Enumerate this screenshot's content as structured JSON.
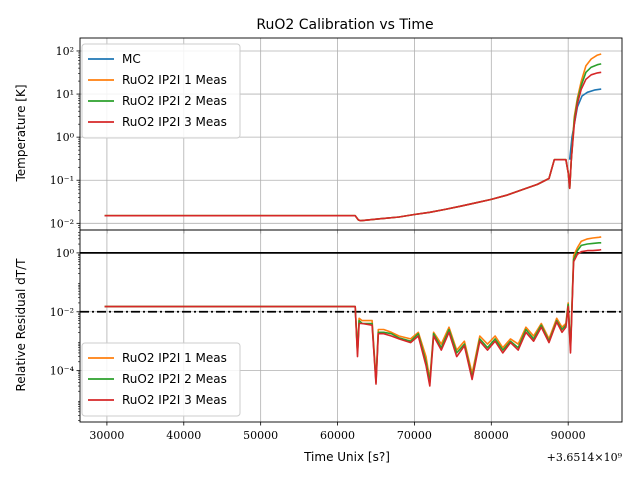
{
  "chart_data": {
    "type": "line",
    "title": "RuO2 Calibration vs Time",
    "xlabel": "Time Unix [s?]",
    "x_offset_label": "+3.6514×10⁹",
    "xlim": [
      26500,
      97000
    ],
    "x_ticks": [
      30000,
      40000,
      50000,
      60000,
      70000,
      80000,
      90000
    ],
    "x_tick_labels": [
      "30000",
      "40000",
      "50000",
      "60000",
      "70000",
      "80000",
      "90000"
    ],
    "panels": [
      {
        "ylabel": "Temperature [K]",
        "yscale": "log",
        "ylim": [
          0.007,
          200
        ],
        "y_ticks": [
          0.01,
          0.1,
          1,
          10,
          100
        ],
        "y_tick_labels": [
          "10⁻²",
          "10⁻¹",
          "10⁰",
          "10¹",
          "10²"
        ],
        "grid": true,
        "legend_position": "upper-left",
        "series": [
          {
            "name": "MC",
            "color": "#1f77b4",
            "x": [
              90200,
              90500,
              90800,
              91200,
              91800,
              92500,
              93500,
              94300
            ],
            "y": [
              0.3,
              1.0,
              2.0,
              5.0,
              9.0,
              11.0,
              12.5,
              13.0
            ]
          },
          {
            "name": "RuO2 IP2I 1 Meas",
            "color": "#ff7f0e",
            "x": [
              29700,
              62300,
              62700,
              63000,
              64000,
              66000,
              68000,
              70000,
              72000,
              74000,
              76000,
              78000,
              80000,
              82000,
              84000,
              86000,
              87500,
              88200,
              89700,
              90000,
              90200,
              90400,
              90800,
              91200,
              91700,
              92300,
              93000,
              93800,
              94300
            ],
            "y": [
              0.015,
              0.015,
              0.012,
              0.0115,
              0.012,
              0.013,
              0.014,
              0.016,
              0.018,
              0.021,
              0.025,
              0.03,
              0.036,
              0.045,
              0.06,
              0.08,
              0.11,
              0.3,
              0.3,
              0.15,
              0.065,
              0.3,
              3.0,
              8.0,
              20.0,
              45.0,
              65.0,
              80.0,
              85.0
            ]
          },
          {
            "name": "RuO2 IP2I 2 Meas",
            "color": "#2ca02c",
            "x": [
              29700,
              62300,
              62700,
              63000,
              64000,
              66000,
              68000,
              70000,
              72000,
              74000,
              76000,
              78000,
              80000,
              82000,
              84000,
              86000,
              87500,
              88200,
              89700,
              90000,
              90200,
              90400,
              90800,
              91200,
              91700,
              92300,
              93000,
              93800,
              94300
            ],
            "y": [
              0.015,
              0.015,
              0.012,
              0.0115,
              0.012,
              0.013,
              0.014,
              0.016,
              0.018,
              0.021,
              0.025,
              0.03,
              0.036,
              0.045,
              0.06,
              0.08,
              0.11,
              0.3,
              0.3,
              0.15,
              0.065,
              0.3,
              2.5,
              7.0,
              16.0,
              32.0,
              42.0,
              48.0,
              50.0
            ]
          },
          {
            "name": "RuO2 IP2I 3 Meas",
            "color": "#d62728",
            "x": [
              29700,
              62300,
              62700,
              63000,
              64000,
              66000,
              68000,
              70000,
              72000,
              74000,
              76000,
              78000,
              80000,
              82000,
              84000,
              86000,
              87500,
              88200,
              89700,
              90000,
              90200,
              90400,
              90800,
              91200,
              91700,
              92300,
              93000,
              93800,
              94300
            ],
            "y": [
              0.015,
              0.015,
              0.012,
              0.0115,
              0.012,
              0.013,
              0.014,
              0.016,
              0.018,
              0.021,
              0.025,
              0.03,
              0.036,
              0.045,
              0.06,
              0.08,
              0.11,
              0.3,
              0.3,
              0.15,
              0.065,
              0.3,
              2.0,
              6.0,
              13.0,
              22.0,
              28.0,
              31.0,
              32.0
            ]
          }
        ]
      },
      {
        "ylabel": "Relative Residual dT/T",
        "yscale": "log",
        "ylim": [
          1.8e-06,
          6
        ],
        "y_ticks": [
          0.0001,
          0.01,
          1
        ],
        "y_tick_labels": [
          "10⁻⁴",
          "10⁻²",
          "10⁰"
        ],
        "grid": true,
        "legend_position": "lower-left",
        "reference_lines": [
          {
            "y": 1,
            "style": "solid",
            "color": "#000000"
          },
          {
            "y": 0.01,
            "style": "dashdot",
            "color": "#000000"
          }
        ],
        "series": [
          {
            "name": "RuO2 IP2I 1 Meas",
            "color": "#ff7f0e",
            "x": [
              29700,
              62300,
              62600,
              62800,
              63200,
              64500,
              65000,
              65300,
              66000,
              67000,
              68000,
              69500,
              70500,
              71500,
              72000,
              72500,
              73500,
              74500,
              75500,
              76500,
              77500,
              78500,
              79500,
              80500,
              81500,
              82500,
              83500,
              84500,
              85500,
              86500,
              87500,
              88500,
              89200,
              89700,
              90000,
              90300,
              90700,
              91200,
              91700,
              92500,
              93200,
              94000,
              94300
            ],
            "y": [
              0.015,
              0.015,
              0.0004,
              0.006,
              0.005,
              0.005,
              5e-05,
              0.0025,
              0.0025,
              0.002,
              0.0015,
              0.0012,
              0.002,
              0.0003,
              5e-05,
              0.002,
              0.0008,
              0.003,
              0.0005,
              0.001,
              8e-05,
              0.0015,
              0.0008,
              0.0015,
              0.0006,
              0.0012,
              0.0008,
              0.003,
              0.0015,
              0.004,
              0.0012,
              0.006,
              0.003,
              0.004,
              0.02,
              0.0005,
              0.8,
              1.5,
              2.5,
              3.0,
              3.2,
              3.4,
              3.5
            ]
          },
          {
            "name": "RuO2 IP2I 2 Meas",
            "color": "#2ca02c",
            "x": [
              29700,
              62300,
              62600,
              62800,
              63200,
              64500,
              65000,
              65300,
              66000,
              67000,
              68000,
              69500,
              70500,
              71500,
              72000,
              72500,
              73500,
              74500,
              75500,
              76500,
              77500,
              78500,
              79500,
              80500,
              81500,
              82500,
              83500,
              84500,
              85500,
              86500,
              87500,
              88500,
              89200,
              89700,
              90000,
              90300,
              90700,
              91200,
              91700,
              92500,
              93200,
              94000,
              94300
            ],
            "y": [
              0.015,
              0.015,
              0.0004,
              0.005,
              0.004,
              0.004,
              4e-05,
              0.002,
              0.002,
              0.0018,
              0.0013,
              0.001,
              0.0018,
              0.0002,
              4e-05,
              0.0018,
              0.0006,
              0.0025,
              0.0004,
              0.0008,
              6e-05,
              0.0012,
              0.0006,
              0.0012,
              0.0005,
              0.001,
              0.0006,
              0.0025,
              0.0012,
              0.0035,
              0.001,
              0.005,
              0.0025,
              0.0035,
              0.018,
              0.0006,
              0.6,
              1.2,
              1.8,
              2.0,
              2.1,
              2.2,
              2.2
            ]
          },
          {
            "name": "RuO2 IP2I 3 Meas",
            "color": "#d62728",
            "x": [
              29700,
              62300,
              62600,
              62800,
              63200,
              64500,
              65000,
              65300,
              66000,
              67000,
              68000,
              69500,
              70500,
              71500,
              72000,
              72500,
              73500,
              74500,
              75500,
              76500,
              77500,
              78500,
              79500,
              80500,
              81500,
              82500,
              83500,
              84500,
              85500,
              86500,
              87500,
              88500,
              89200,
              89700,
              90000,
              90300,
              90700,
              91200,
              91700,
              92500,
              93200,
              94000,
              94300
            ],
            "y": [
              0.015,
              0.015,
              0.0003,
              0.004,
              0.004,
              0.0035,
              3.5e-05,
              0.0018,
              0.0018,
              0.0015,
              0.0012,
              0.0009,
              0.0015,
              0.00015,
              3e-05,
              0.0015,
              0.0005,
              0.002,
              0.0003,
              0.0007,
              5e-05,
              0.001,
              0.0005,
              0.001,
              0.0004,
              0.0009,
              0.0005,
              0.002,
              0.001,
              0.003,
              0.0009,
              0.0045,
              0.002,
              0.003,
              0.015,
              0.0004,
              0.5,
              0.9,
              1.1,
              1.2,
              1.2,
              1.25,
              1.3
            ]
          }
        ]
      }
    ]
  }
}
